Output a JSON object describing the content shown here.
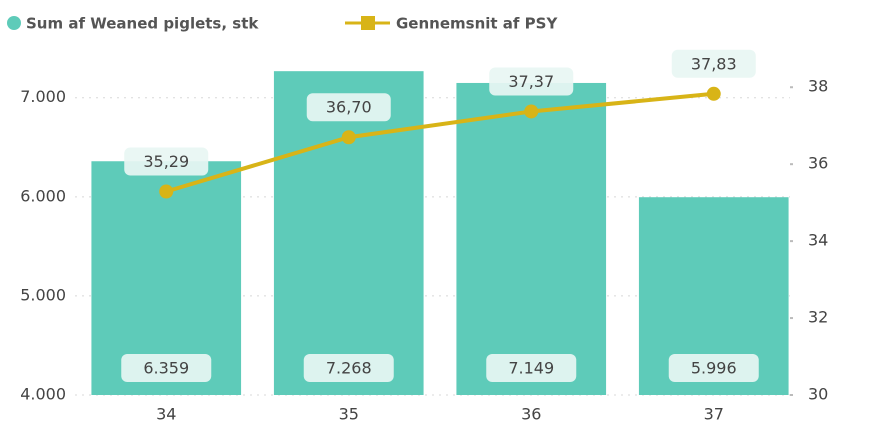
{
  "chart_data": {
    "type": "combo",
    "categories": [
      "34",
      "35",
      "36",
      "37"
    ],
    "series": [
      {
        "name": "Sum af Weaned piglets, stk",
        "type": "bar",
        "color": "#5ecbb9",
        "axis": "y",
        "values": [
          6359,
          7268,
          7149,
          5996
        ],
        "value_labels": [
          "6.359",
          "7.268",
          "7.149",
          "5.996"
        ]
      },
      {
        "name": "Gennemsnit af PSY",
        "type": "line",
        "color": "#d8b417",
        "axis": "y2",
        "values": [
          35.29,
          36.7,
          37.37,
          37.83
        ],
        "value_labels": [
          "35,29",
          "36,70",
          "37,37",
          "37,83"
        ]
      }
    ],
    "ylim": [
      4000,
      7300
    ],
    "yticks": [
      {
        "value": 4000,
        "label": "4.000"
      },
      {
        "value": 5000,
        "label": "5.000"
      },
      {
        "value": 6000,
        "label": "6.000"
      },
      {
        "value": 7000,
        "label": "7.000"
      }
    ],
    "y2lim": [
      30,
      38.5
    ],
    "y2ticks": [
      30,
      32,
      34,
      36,
      38
    ],
    "grid": true
  }
}
